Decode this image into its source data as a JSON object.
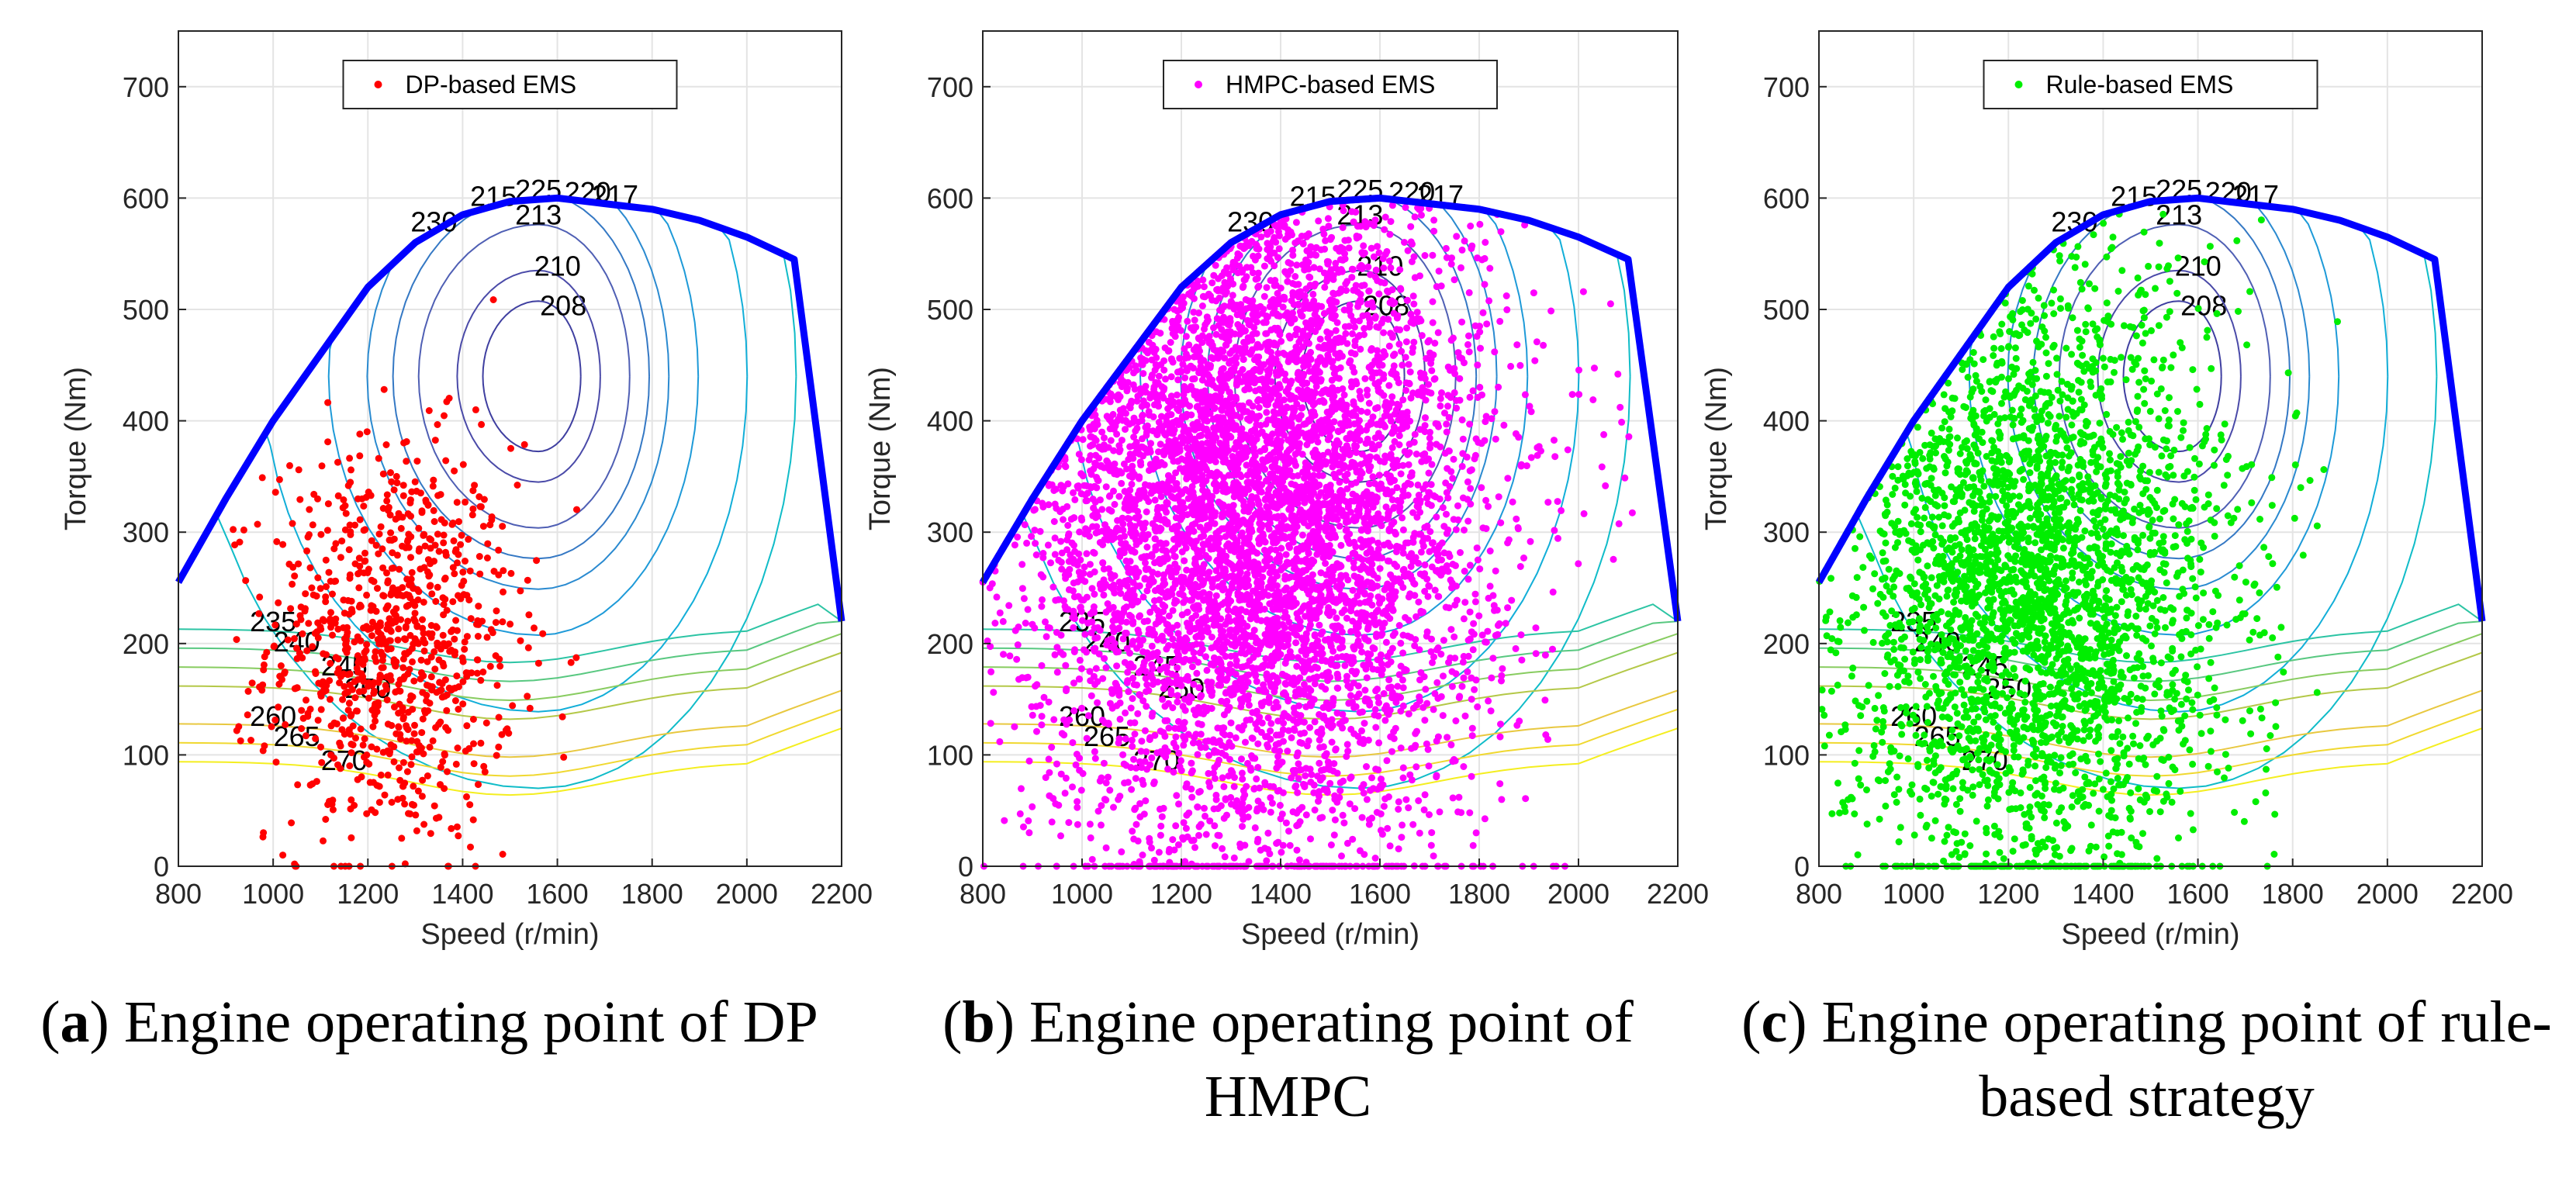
{
  "chart_data": [
    {
      "type": "scatter",
      "panel": "a",
      "xlabel": "Speed (r/min)",
      "ylabel": "Torque (Nm)",
      "xlim": [
        800,
        2200
      ],
      "ylim": [
        0,
        750
      ],
      "xticks": [
        800,
        1000,
        1200,
        1400,
        1600,
        1800,
        2000,
        2200
      ],
      "yticks": [
        0,
        100,
        200,
        300,
        400,
        500,
        600,
        700
      ],
      "grid": true,
      "legend_position": "top-center",
      "series": [
        {
          "name": "DP-based EMS",
          "color": "#ff0000",
          "center": [
            1250,
            200
          ],
          "spread": [
            130,
            90
          ],
          "count": 900
        }
      ],
      "caption": {
        "letter": "a",
        "text": "Engine operating point of DP"
      }
    },
    {
      "type": "scatter",
      "panel": "b",
      "xlabel": "Speed (r/min)",
      "ylabel": "Torque (Nm)",
      "xlim": [
        800,
        2200
      ],
      "ylim": [
        0,
        750
      ],
      "xticks": [
        800,
        1000,
        1200,
        1400,
        1600,
        1800,
        2000,
        2200
      ],
      "yticks": [
        0,
        100,
        200,
        300,
        400,
        500,
        600,
        700
      ],
      "grid": true,
      "legend_position": "top-center",
      "series": [
        {
          "name": "HMPC-based EMS",
          "color": "#ff00ff",
          "center": [
            1350,
            330
          ],
          "spread": [
            230,
            160
          ],
          "count": 7000
        }
      ],
      "caption": {
        "letter": "b",
        "text": "Engine operating point of HMPC"
      }
    },
    {
      "type": "scatter",
      "panel": "c",
      "xlabel": "Speed (r/min)",
      "ylabel": "Torque (Nm)",
      "xlim": [
        800,
        2200
      ],
      "ylim": [
        0,
        750
      ],
      "xticks": [
        800,
        1000,
        1200,
        1400,
        1600,
        1800,
        2000,
        2200
      ],
      "yticks": [
        0,
        100,
        200,
        300,
        400,
        500,
        600,
        700
      ],
      "grid": true,
      "legend_position": "top-center",
      "series": [
        {
          "name": "Rule-based EMS",
          "color": "#00ee00",
          "center": [
            1250,
            250
          ],
          "spread": [
            200,
            140
          ],
          "count": 3500
        }
      ],
      "caption": {
        "letter": "c",
        "text": "Engine operating point of rule-based strategy"
      }
    }
  ],
  "engine_map": {
    "max_torque_curve": {
      "speed": [
        800,
        900,
        1000,
        1100,
        1200,
        1300,
        1400,
        1500,
        1600,
        1700,
        1800,
        1900,
        2000,
        2100,
        2200
      ],
      "torque": [
        255,
        330,
        400,
        460,
        520,
        560,
        585,
        597,
        600,
        595,
        590,
        580,
        565,
        545,
        220
      ],
      "color": "#0000ff"
    },
    "bsfc_contours": [
      {
        "level": "208",
        "color": "#3f3fa0"
      },
      {
        "level": "210",
        "color": "#4a4aa8"
      },
      {
        "level": "213",
        "color": "#4f5fb4"
      },
      {
        "level": "215",
        "color": "#3478c4"
      },
      {
        "level": "217",
        "color": "#2a8ad0"
      },
      {
        "level": "220",
        "color": "#1e9ad8"
      },
      {
        "level": "225",
        "color": "#12aed8"
      },
      {
        "level": "230",
        "color": "#10bcc8"
      },
      {
        "level": "235",
        "color": "#2cc4a4"
      },
      {
        "level": "240",
        "color": "#58c880"
      },
      {
        "level": "245",
        "color": "#88cc60"
      },
      {
        "level": "250",
        "color": "#b4c848"
      },
      {
        "level": "260",
        "color": "#e8c840"
      },
      {
        "level": "265",
        "color": "#f0d830"
      },
      {
        "level": "270",
        "color": "#f4ee20"
      }
    ]
  }
}
